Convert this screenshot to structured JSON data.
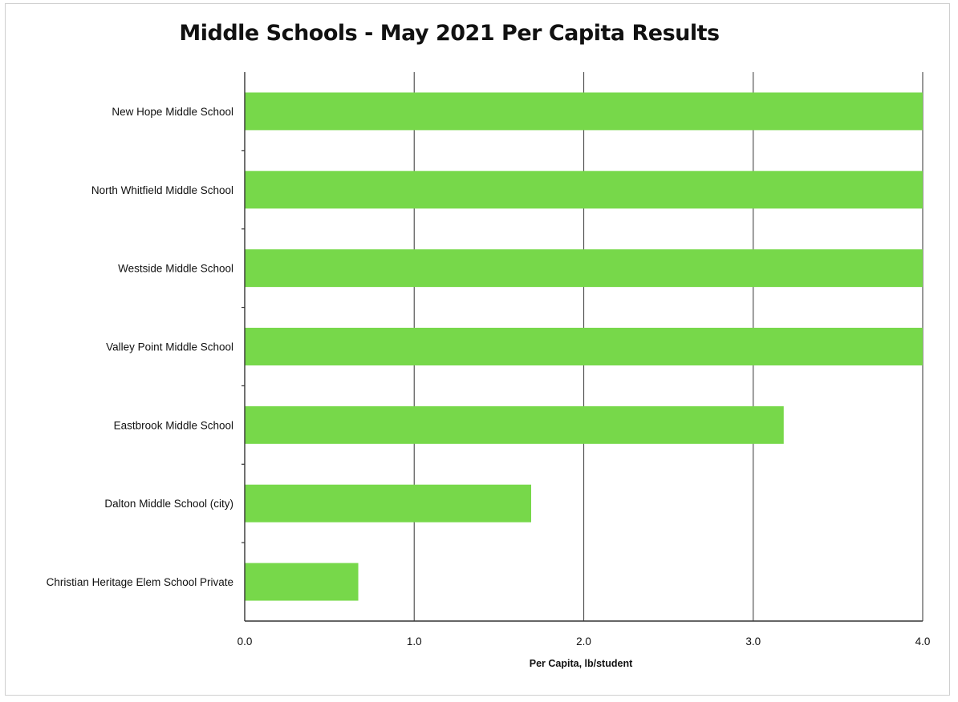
{
  "chart_data": {
    "type": "bar",
    "orientation": "horizontal",
    "title": "Middle Schools - May 2021 Per Capita Results",
    "xlabel": "Per Capita, lb/student",
    "ylabel": "",
    "xlim": [
      0,
      4
    ],
    "xticks": [
      "0.0",
      "1.0",
      "2.0",
      "3.0",
      "4.0"
    ],
    "grid": true,
    "categories": [
      "New Hope Middle School",
      "North Whitfield Middle School",
      "Westside Middle School",
      "Valley Point Middle School",
      "Eastbrook Middle School",
      "Dalton Middle School (city)",
      "Christian Heritage Elem School Private"
    ],
    "values": [
      4.0,
      4.0,
      4.0,
      4.0,
      3.18,
      1.69,
      0.67
    ],
    "bar_color": "#77d84a"
  }
}
